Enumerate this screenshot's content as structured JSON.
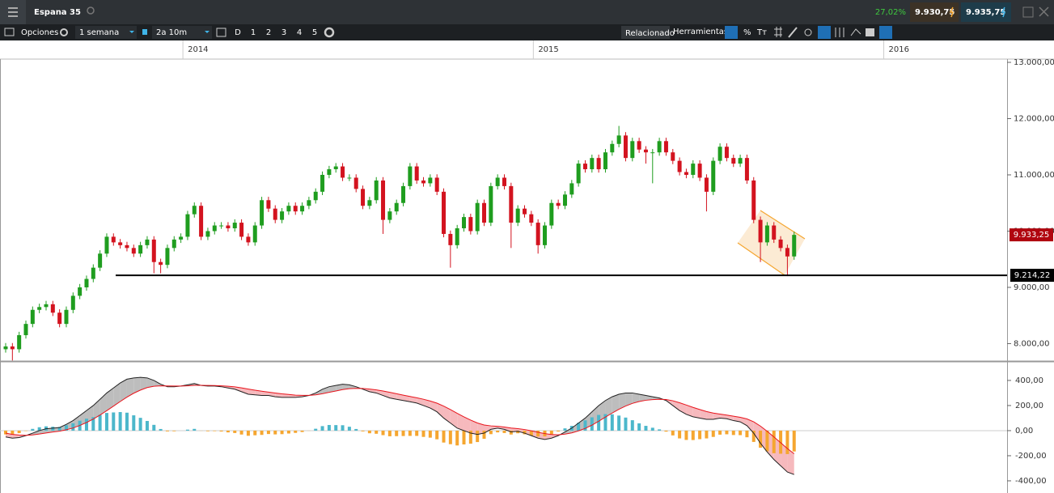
{
  "ui": {
    "change": "27,02%",
    "sell": "9.930,75",
    "buy": "9.935,75",
    "options": "Opciones",
    "period": "1 semana",
    "range": "2a 10m",
    "periods": [
      "D",
      "1",
      "2",
      "3",
      "4",
      "5"
    ],
    "related": "Relacionado",
    "tools": "Herramientas",
    "percent": "%",
    "text_tool": "Tт"
  },
  "chart_data": {
    "type": "candlestick",
    "title": "Espana 35",
    "up_color": "#1f9d1f",
    "down_color": "#d3131f",
    "x": [
      0,
      1,
      2,
      3,
      4,
      5,
      6,
      7,
      8,
      9,
      10,
      11,
      12,
      13,
      14,
      15,
      16,
      17,
      18,
      19,
      20,
      21,
      22,
      23,
      24,
      25,
      26,
      27,
      28,
      29,
      30,
      31,
      32,
      33,
      34,
      35,
      36,
      37,
      38,
      39,
      40,
      41,
      42,
      43,
      44,
      45,
      46,
      47,
      48,
      49,
      50,
      51,
      52,
      53,
      54,
      55,
      56,
      57,
      58,
      59,
      60,
      61,
      62,
      63,
      64,
      65,
      66,
      67,
      68,
      69,
      70,
      71,
      72,
      73,
      74,
      75,
      76,
      77,
      78,
      79,
      80,
      81,
      82,
      83,
      84,
      85,
      86,
      87,
      88,
      89,
      90,
      91,
      92,
      93,
      94,
      95,
      96,
      97,
      98,
      99,
      100,
      101,
      102,
      103,
      104,
      105,
      106,
      107,
      108,
      109,
      110,
      111,
      112,
      113,
      114,
      115,
      116,
      117
    ],
    "ohlc": [
      [
        7900,
        8010,
        7840,
        7950
      ],
      [
        7950,
        8010,
        7700,
        7900
      ],
      [
        7900,
        8210,
        7840,
        8150
      ],
      [
        8150,
        8410,
        8090,
        8350
      ],
      [
        8350,
        8660,
        8290,
        8600
      ],
      [
        8600,
        8710,
        8540,
        8650
      ],
      [
        8650,
        8760,
        8590,
        8700
      ],
      [
        8700,
        8760,
        8490,
        8550
      ],
      [
        8550,
        8610,
        8290,
        8350
      ],
      [
        8350,
        8660,
        8290,
        8600
      ],
      [
        8600,
        8910,
        8540,
        8850
      ],
      [
        8850,
        9060,
        8790,
        9000
      ],
      [
        9000,
        9210,
        8940,
        9150
      ],
      [
        9150,
        9410,
        9090,
        9350
      ],
      [
        9350,
        9660,
        9290,
        9600
      ],
      [
        9600,
        9960,
        9540,
        9900
      ],
      [
        9900,
        9960,
        9740,
        9800
      ],
      [
        9800,
        9860,
        9690,
        9750
      ],
      [
        9750,
        9810,
        9640,
        9700
      ],
      [
        9700,
        9760,
        9540,
        9600
      ],
      [
        9600,
        9810,
        9540,
        9750
      ],
      [
        9750,
        9910,
        9690,
        9850
      ],
      [
        9850,
        9910,
        9250,
        9450
      ],
      [
        9450,
        9510,
        9250,
        9400
      ],
      [
        9400,
        9760,
        9340,
        9700
      ],
      [
        9700,
        9910,
        9640,
        9850
      ],
      [
        9850,
        9960,
        9790,
        9900
      ],
      [
        9900,
        10360,
        9840,
        10300
      ],
      [
        10300,
        10510,
        10240,
        10450
      ],
      [
        10450,
        10510,
        9840,
        9900
      ],
      [
        9900,
        10060,
        9840,
        10000
      ],
      [
        10000,
        10160,
        9940,
        10100
      ],
      [
        10100,
        10160,
        10040,
        10100
      ],
      [
        10100,
        10160,
        9990,
        10050
      ],
      [
        10050,
        10210,
        9990,
        10150
      ],
      [
        10150,
        10210,
        9840,
        9900
      ],
      [
        9900,
        9960,
        9740,
        9800
      ],
      [
        9800,
        10160,
        9740,
        10100
      ],
      [
        10100,
        10610,
        10040,
        10550
      ],
      [
        10550,
        10610,
        10340,
        10400
      ],
      [
        10400,
        10460,
        10140,
        10200
      ],
      [
        10200,
        10410,
        10140,
        10350
      ],
      [
        10350,
        10510,
        10290,
        10450
      ],
      [
        10450,
        10510,
        10290,
        10350
      ],
      [
        10350,
        10510,
        10290,
        10450
      ],
      [
        10450,
        10610,
        10390,
        10550
      ],
      [
        10550,
        10760,
        10490,
        10700
      ],
      [
        10700,
        11060,
        10640,
        11000
      ],
      [
        11000,
        11160,
        10940,
        11100
      ],
      [
        11100,
        11210,
        11040,
        11150
      ],
      [
        11150,
        11210,
        10890,
        10950
      ],
      [
        10950,
        11010,
        10890,
        10950
      ],
      [
        10950,
        11010,
        10690,
        10750
      ],
      [
        10750,
        10810,
        10390,
        10450
      ],
      [
        10450,
        10610,
        10390,
        10550
      ],
      [
        10550,
        10960,
        10490,
        10900
      ],
      [
        10900,
        10960,
        9950,
        10200
      ],
      [
        10200,
        10410,
        10140,
        10350
      ],
      [
        10350,
        10560,
        10290,
        10500
      ],
      [
        10500,
        10860,
        10440,
        10800
      ],
      [
        10800,
        11210,
        10740,
        11150
      ],
      [
        11150,
        11210,
        10840,
        10900
      ],
      [
        10900,
        10960,
        10790,
        10850
      ],
      [
        10850,
        11010,
        10790,
        10950
      ],
      [
        10950,
        11010,
        10640,
        10700
      ],
      [
        10700,
        10760,
        9890,
        9950
      ],
      [
        9950,
        10010,
        9350,
        9750
      ],
      [
        9750,
        10110,
        9690,
        10050
      ],
      [
        10050,
        10310,
        9990,
        10250
      ],
      [
        10250,
        10310,
        9940,
        10000
      ],
      [
        10000,
        10560,
        9940,
        10500
      ],
      [
        10500,
        10560,
        10090,
        10150
      ],
      [
        10150,
        10860,
        10090,
        10800
      ],
      [
        10800,
        11010,
        10740,
        10950
      ],
      [
        10950,
        11010,
        10740,
        10800
      ],
      [
        10800,
        10860,
        9700,
        10150
      ],
      [
        10150,
        10460,
        10090,
        10400
      ],
      [
        10400,
        10460,
        10240,
        10300
      ],
      [
        10300,
        10360,
        10090,
        10150
      ],
      [
        10150,
        10210,
        9600,
        9750
      ],
      [
        9750,
        10160,
        9690,
        10100
      ],
      [
        10100,
        10560,
        10040,
        10500
      ],
      [
        10500,
        10560,
        10390,
        10450
      ],
      [
        10450,
        10710,
        10390,
        10650
      ],
      [
        10650,
        10910,
        10590,
        10850
      ],
      [
        10850,
        11260,
        10790,
        11200
      ],
      [
        11200,
        11260,
        11040,
        11100
      ],
      [
        11100,
        11360,
        11040,
        11300
      ],
      [
        11300,
        11360,
        11040,
        11100
      ],
      [
        11100,
        11460,
        11040,
        11400
      ],
      [
        11400,
        11610,
        11340,
        11550
      ],
      [
        11550,
        11870,
        11490,
        11700
      ],
      [
        11700,
        11760,
        11240,
        11300
      ],
      [
        11300,
        11660,
        11240,
        11600
      ],
      [
        11600,
        11660,
        11390,
        11450
      ],
      [
        11450,
        11510,
        11200,
        11400
      ],
      [
        11400,
        11460,
        10850,
        11400
      ],
      [
        11400,
        11660,
        11340,
        11600
      ],
      [
        11600,
        11660,
        11340,
        11400
      ],
      [
        11400,
        11460,
        11190,
        11250
      ],
      [
        11250,
        11310,
        10990,
        11050
      ],
      [
        11050,
        11110,
        10940,
        11000
      ],
      [
        11000,
        11260,
        10940,
        11200
      ],
      [
        11200,
        11260,
        10890,
        10950
      ],
      [
        10950,
        11010,
        10350,
        10700
      ],
      [
        10700,
        11310,
        10640,
        11250
      ],
      [
        11250,
        11560,
        11190,
        11500
      ],
      [
        11500,
        11560,
        11240,
        11300
      ],
      [
        11300,
        11360,
        11140,
        11200
      ],
      [
        11200,
        11360,
        11140,
        11300
      ],
      [
        11300,
        11360,
        10840,
        10900
      ],
      [
        10900,
        10960,
        10140,
        10200
      ],
      [
        10200,
        10260,
        9450,
        9800
      ],
      [
        9800,
        10160,
        9740,
        10100
      ],
      [
        10100,
        10160,
        9790,
        9850
      ],
      [
        9850,
        9910,
        9640,
        9700
      ],
      [
        9700,
        9760,
        9200,
        9550
      ],
      [
        9550,
        9990,
        9490,
        9933
      ]
    ],
    "xlim": [
      -0.84,
      148.6
    ],
    "xticks": [
      {
        "value": 26.3,
        "label": "2014"
      },
      {
        "value": 78.3,
        "label": "2015"
      },
      {
        "value": 130.3,
        "label": "2016"
      }
    ],
    "ylim": [
      7690,
      13058
    ],
    "yticks": [
      {
        "value": 8000,
        "label": "8.000,00"
      },
      {
        "value": 9000,
        "label": "9.000,00"
      },
      {
        "value": 10000,
        "label": "10.000,00"
      },
      {
        "value": 11000,
        "label": "11.000,00"
      },
      {
        "value": 12000,
        "label": "12.000,00"
      },
      {
        "value": 13000,
        "label": "13.000,00"
      }
    ],
    "hline": {
      "value": 9214.22,
      "label": "9.214,22"
    },
    "last": {
      "value": 9933.25,
      "label": "9.933,25"
    },
    "macd": {
      "type": "macd",
      "ylim": [
        -497,
        548
      ],
      "yticks": [
        {
          "value": 400,
          "label": "400,00"
        },
        {
          "value": 200,
          "label": "200,00"
        },
        {
          "value": 0,
          "label": "0,00"
        },
        {
          "value": -200,
          "label": "-200,00"
        },
        {
          "value": -400,
          "label": "-400,00"
        }
      ],
      "series": [
        {
          "color": "#222222",
          "values": [
            -50,
            -60,
            -55,
            -40,
            -20,
            0,
            15,
            20,
            25,
            50,
            80,
            120,
            160,
            200,
            250,
            300,
            340,
            380,
            410,
            420,
            425,
            420,
            400,
            370,
            350,
            350,
            355,
            365,
            375,
            360,
            355,
            355,
            350,
            340,
            330,
            310,
            290,
            285,
            280,
            280,
            270,
            265,
            265,
            265,
            270,
            280,
            300,
            330,
            350,
            360,
            370,
            365,
            350,
            330,
            310,
            300,
            280,
            260,
            250,
            240,
            230,
            220,
            200,
            180,
            150,
            100,
            60,
            20,
            0,
            -20,
            -30,
            -20,
            10,
            20,
            10,
            -10,
            -5,
            -20,
            -40,
            -60,
            -70,
            -60,
            -40,
            -10,
            20,
            60,
            100,
            150,
            200,
            240,
            270,
            290,
            300,
            300,
            290,
            280,
            270,
            260,
            240,
            200,
            160,
            130,
            110,
            100,
            90,
            90,
            100,
            95,
            80,
            70,
            40,
            -20,
            -100,
            -170,
            -230,
            -280,
            -330,
            -350
          ]
        },
        {
          "color": "#e8141c",
          "values": [
            -20,
            -30,
            -35,
            -37,
            -34,
            -27,
            -19,
            -11,
            -4,
            7,
            21,
            41,
            65,
            92,
            124,
            159,
            195,
            232,
            267,
            298,
            323,
            343,
            354,
            357,
            356,
            355,
            355,
            357,
            361,
            361,
            360,
            359,
            357,
            354,
            349,
            341,
            331,
            322,
            314,
            307,
            300,
            293,
            288,
            283,
            281,
            281,
            285,
            294,
            305,
            316,
            327,
            334,
            337,
            336,
            331,
            325,
            316,
            305,
            294,
            283,
            272,
            262,
            250,
            236,
            219,
            195,
            168,
            138,
            110,
            84,
            61,
            45,
            38,
            34,
            29,
            21,
            16,
            9,
            -1,
            -13,
            -24,
            -31,
            -33,
            -28,
            -18,
            -2,
            18,
            44,
            75,
            108,
            140,
            170,
            196,
            217,
            232,
            242,
            247,
            250,
            248,
            238,
            222,
            204,
            185,
            168,
            152,
            140,
            132,
            124,
            115,
            106,
            93,
            70,
            36,
            -5,
            -50,
            -96,
            -143,
            -184
          ]
        }
      ],
      "histogram": {
        "pos_color": "#4cb7cb",
        "neg_color": "#f5a630",
        "values": [
          -30,
          -30,
          -20,
          -3,
          14,
          27,
          34,
          31,
          29,
          43,
          59,
          79,
          95,
          108,
          126,
          141,
          145,
          148,
          143,
          122,
          102,
          77,
          46,
          13,
          -6,
          -5,
          0,
          8,
          14,
          -1,
          -5,
          -4,
          -7,
          -14,
          -19,
          -31,
          -41,
          -37,
          -34,
          -27,
          -30,
          -28,
          -23,
          -18,
          -11,
          -1,
          15,
          36,
          45,
          44,
          43,
          31,
          13,
          -6,
          -21,
          -25,
          -36,
          -45,
          -44,
          -43,
          -42,
          -42,
          -50,
          -56,
          -69,
          -95,
          -108,
          -118,
          -110,
          -104,
          -91,
          -65,
          -28,
          -14,
          -19,
          -31,
          -21,
          -29,
          -39,
          -47,
          -46,
          -29,
          -7,
          18,
          38,
          62,
          82,
          106,
          125,
          132,
          130,
          120,
          104,
          83,
          58,
          38,
          23,
          10,
          -8,
          -38,
          -62,
          -74,
          -75,
          -68,
          -62,
          -50,
          -32,
          -29,
          -35,
          -36,
          -53,
          -90,
          -136,
          -165,
          -180,
          -184,
          -187,
          -166
        ]
      }
    }
  }
}
